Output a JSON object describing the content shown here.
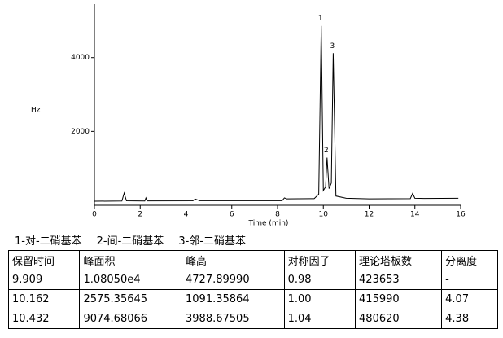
{
  "chart_data": {
    "type": "line",
    "ylabel": "Hz",
    "xlabel": "Time (min)",
    "color": "#000000",
    "x": [
      0,
      1.2,
      1.3,
      1.4,
      2.2,
      2.25,
      2.3,
      4.3,
      4.4,
      4.6,
      8.2,
      8.3,
      8.4,
      9.6,
      9.8,
      9.909,
      10.0,
      10.1,
      10.162,
      10.25,
      10.35,
      10.432,
      10.55,
      11.0,
      12.0,
      13.8,
      13.9,
      14.0,
      14.4,
      15.9
    ],
    "values": [
      110,
      115,
      330,
      120,
      115,
      200,
      118,
      120,
      170,
      125,
      125,
      200,
      175,
      180,
      300,
      4860,
      400,
      500,
      1290,
      450,
      600,
      4120,
      250,
      190,
      175,
      180,
      320,
      190,
      185,
      190
    ],
    "xlim": [
      0,
      16
    ],
    "xticks": [
      0,
      2,
      4,
      6,
      8,
      10,
      12,
      14,
      16
    ],
    "ylim": [
      0,
      5450
    ],
    "yticks": [
      2000,
      4000
    ],
    "peaks": [
      {
        "label": "1",
        "x": 9.909,
        "y": 4860
      },
      {
        "label": "2",
        "x": 10.162,
        "y": 1290
      },
      {
        "label": "3",
        "x": 10.432,
        "y": 4120
      }
    ]
  },
  "legend": [
    "1-对-二硝基苯",
    "2-间-二硝基苯",
    "3-邻-二硝基苯"
  ],
  "table": {
    "header": [
      "保留时间",
      "峰面积",
      "峰高",
      "对称因子",
      "理论塔板数",
      "分离度"
    ],
    "rows": [
      [
        "9.909",
        "1.08050e4",
        "4727.89990",
        "0.98",
        "423653",
        "-"
      ],
      [
        "10.162",
        "2575.35645",
        "1091.35864",
        "1.00",
        "415990",
        "4.07"
      ],
      [
        "10.432",
        "9074.68066",
        "3988.67505",
        "1.04",
        "480620",
        "4.38"
      ]
    ]
  }
}
